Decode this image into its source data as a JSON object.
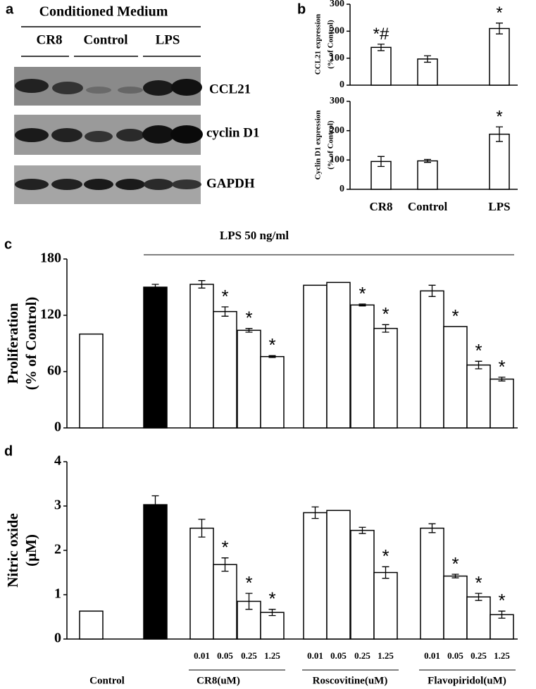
{
  "panel_labels": [
    "a",
    "b",
    "c",
    "d"
  ],
  "blot": {
    "header": "Conditioned Medium",
    "lanes": [
      "CR8",
      "Control",
      "LPS"
    ],
    "rows": [
      "CCL21",
      "cyclin D1",
      "GAPDH"
    ]
  },
  "chart_data": [
    {
      "type": "bar",
      "ylabel": [
        "CCL21 expression",
        "(% of Control)"
      ],
      "categories": [
        null,
        null,
        null
      ],
      "values": [
        140,
        97,
        210
      ],
      "errors": [
        12,
        12,
        20
      ],
      "annotations": [
        "*#",
        null,
        "*"
      ],
      "colors": [
        "#ffffff",
        "#ffffff",
        "#ffffff"
      ],
      "ylim": [
        0,
        300
      ],
      "yticks": [
        0,
        100,
        200,
        300
      ]
    },
    {
      "type": "bar",
      "ylabel": [
        "Cyclin D1 expression",
        "(% of Control)"
      ],
      "categories": [
        "CR8",
        "Control",
        "LPS"
      ],
      "values": [
        95,
        97,
        188
      ],
      "errors": [
        17,
        5,
        25
      ],
      "annotations": [
        null,
        null,
        "*"
      ],
      "colors": [
        "#ffffff",
        "#ffffff",
        "#ffffff"
      ],
      "ylim": [
        0,
        300
      ],
      "yticks": [
        0,
        100,
        200,
        300
      ]
    },
    {
      "type": "bar",
      "ylabel": [
        "Proliferation",
        "(% of Control)"
      ],
      "annotation": "LPS 50 ng/ml",
      "categories": [
        null,
        null,
        null,
        null,
        null,
        null,
        null,
        null,
        null,
        null,
        null,
        null,
        null,
        null
      ],
      "values": [
        100,
        150,
        153,
        124,
        104,
        76,
        152,
        155,
        131,
        106,
        146,
        108,
        67,
        52
      ],
      "errors": [
        null,
        3,
        4,
        5,
        2,
        1,
        null,
        null,
        1,
        4,
        6,
        null,
        4,
        2
      ],
      "annotations": [
        null,
        null,
        null,
        "*",
        "*",
        "*",
        null,
        null,
        "*",
        "*",
        null,
        "*",
        "*",
        "*"
      ],
      "colors": [
        "#ffffff",
        "#000000",
        "#ffffff",
        "#ffffff",
        "#ffffff",
        "#ffffff",
        "#ffffff",
        "#ffffff",
        "#ffffff",
        "#ffffff",
        "#ffffff",
        "#ffffff",
        "#ffffff",
        "#ffffff"
      ],
      "ylim": [
        0,
        180
      ],
      "yticks": [
        0,
        60,
        120,
        180
      ]
    },
    {
      "type": "bar",
      "ylabel": [
        "Nitric oxide",
        "(μM)"
      ],
      "categories": [
        null,
        null,
        "0.01",
        "0.05",
        "0.25",
        "1.25",
        "0.01",
        "0.05",
        "0.25",
        "1.25",
        "0.01",
        "0.05",
        "0.25",
        "1.25"
      ],
      "group_labels": [
        "Control",
        "CR8(uM)",
        "Roscovitine(uM)",
        "Flavopiridol(uM)"
      ],
      "values": [
        0.63,
        3.03,
        2.5,
        1.68,
        0.85,
        0.6,
        2.85,
        2.9,
        2.45,
        1.5,
        2.5,
        1.42,
        0.95,
        0.55
      ],
      "errors": [
        null,
        0.2,
        0.2,
        0.15,
        0.18,
        0.07,
        0.13,
        null,
        0.07,
        0.13,
        0.1,
        0.04,
        0.08,
        0.08
      ],
      "annotations": [
        null,
        null,
        null,
        "*",
        "*",
        "*",
        null,
        null,
        null,
        "*",
        null,
        "*",
        "*",
        "*"
      ],
      "colors": [
        "#ffffff",
        "#000000",
        "#ffffff",
        "#ffffff",
        "#ffffff",
        "#ffffff",
        "#ffffff",
        "#ffffff",
        "#ffffff",
        "#ffffff",
        "#ffffff",
        "#ffffff",
        "#ffffff",
        "#ffffff"
      ],
      "ylim": [
        0,
        4
      ],
      "yticks": [
        0,
        1,
        2,
        3,
        4
      ]
    }
  ]
}
